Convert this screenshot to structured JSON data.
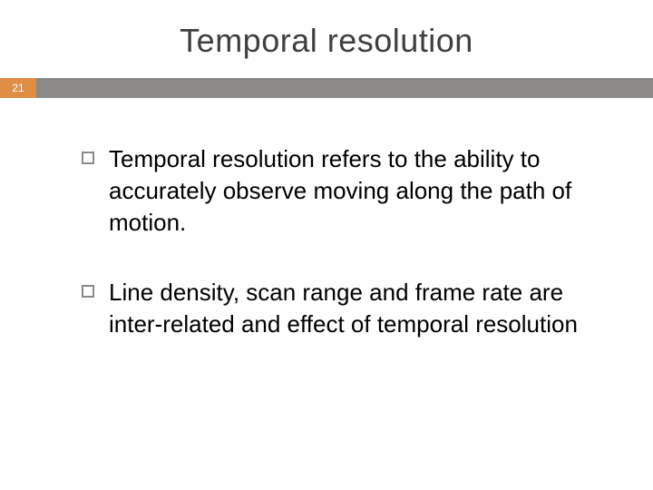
{
  "slide": {
    "title": "Temporal resolution",
    "page_number": "21",
    "bullets": [
      {
        "text": "Temporal resolution refers to the ability to accurately observe moving along the path of motion."
      },
      {
        "text": "Line density, scan range and frame rate are inter-related and effect of temporal resolution"
      }
    ]
  },
  "style": {
    "title_fontsize": 36,
    "title_color": "#3f3f3f",
    "page_num_bg": "#e08e46",
    "page_num_text_color": "#ffffff",
    "bar_color": "#8a8986",
    "bullet_border_color": "#8a8986",
    "body_fontsize": 26,
    "body_color": "#000000",
    "background": "#ffffff"
  }
}
